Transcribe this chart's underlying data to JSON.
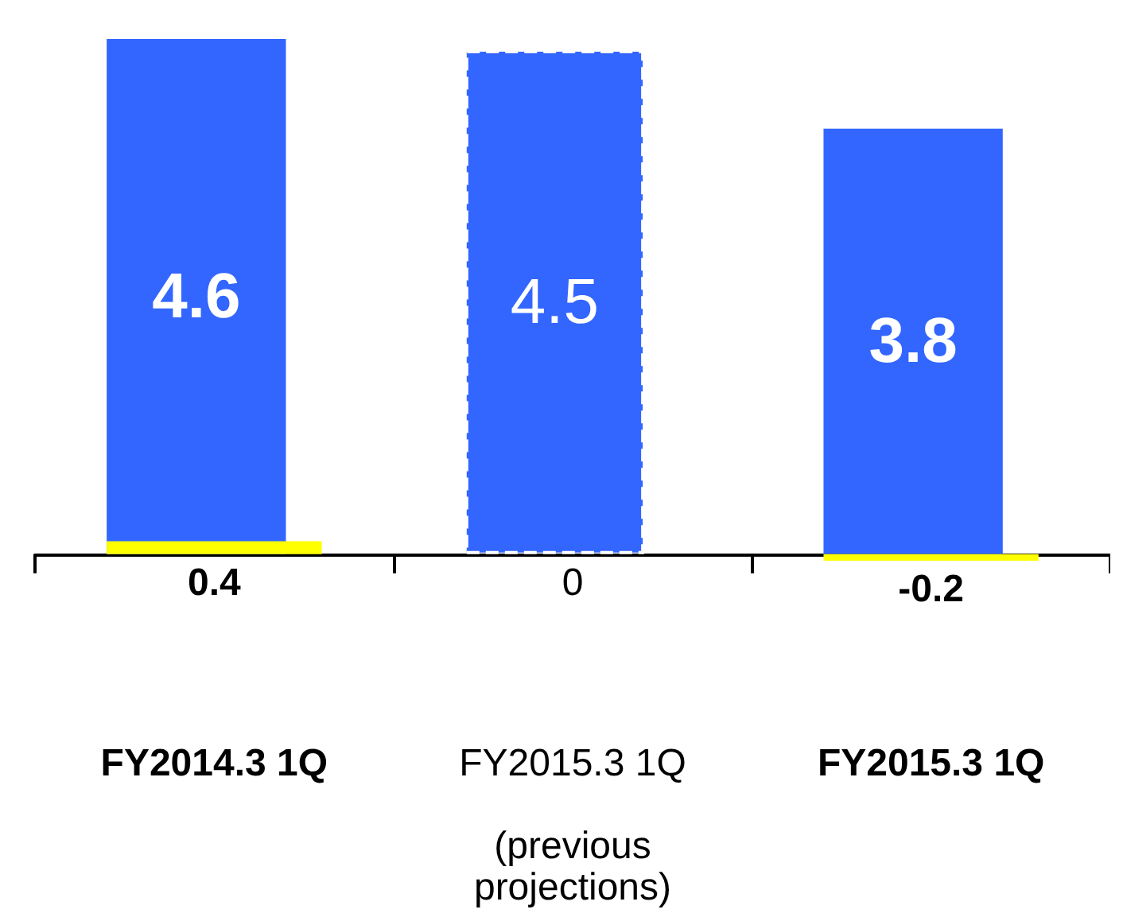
{
  "chart_data": {
    "type": "bar",
    "categories": [
      "FY2014.3 1Q",
      "FY2015.3 1Q\n\n(previous\nprojections)",
      "FY2015.3 1Q"
    ],
    "series": [
      {
        "color": "#3366ff",
        "values": [
          4.6,
          4.5,
          3.8
        ]
      },
      {
        "color": "#ffff00",
        "values": [
          0.4,
          0,
          -0.2
        ],
        "axis": "y2"
      }
    ],
    "data_labels": true,
    "grid": false
  }
}
